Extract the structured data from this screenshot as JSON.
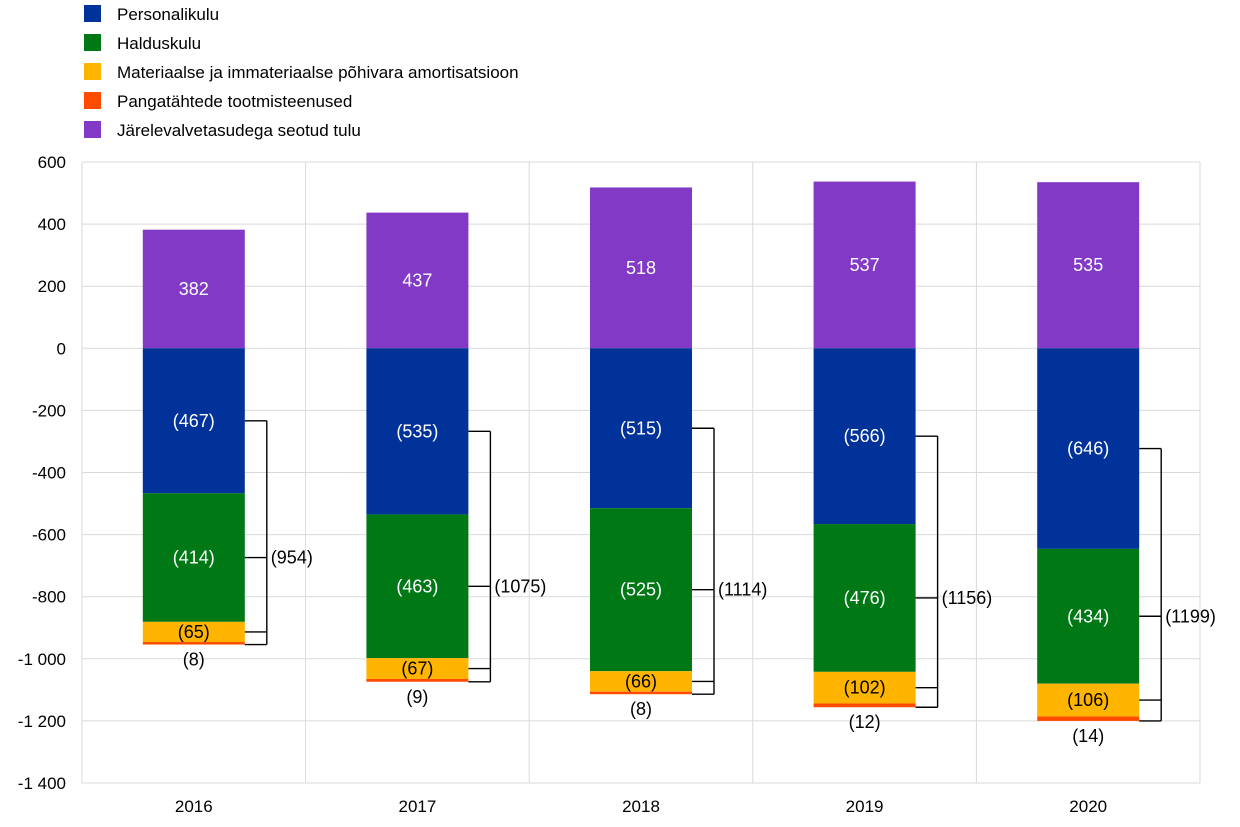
{
  "chart_data": {
    "type": "bar",
    "stacked": true,
    "categories": [
      "2016",
      "2017",
      "2018",
      "2019",
      "2020"
    ],
    "ylim": [
      -1400,
      600
    ],
    "yticks": [
      600,
      400,
      200,
      0,
      -200,
      -400,
      -600,
      -800,
      -1000,
      -1200,
      -1400
    ],
    "ytick_labels": [
      "600",
      "400",
      "200",
      "0",
      "-200",
      "-400",
      "-600",
      "-800",
      "-1 000",
      "-1 200",
      "-1 400"
    ],
    "grid": true,
    "legend_position": "top-left",
    "series": [
      {
        "name": "Personalikulu",
        "color": "#003299",
        "values": [
          -467,
          -535,
          -515,
          -566,
          -646
        ],
        "labels": [
          "(467)",
          "(535)",
          "(515)",
          "(566)",
          "(646)"
        ]
      },
      {
        "name": "Halduskulu",
        "color": "#007816",
        "values": [
          -414,
          -463,
          -525,
          -476,
          -434
        ],
        "labels": [
          "(414)",
          "(463)",
          "(525)",
          "(476)",
          "(434)"
        ]
      },
      {
        "name": "Materiaalse ja immateriaalse põhivara amortisatsioon",
        "color": "#FFB400",
        "values": [
          -65,
          -67,
          -66,
          -102,
          -106
        ],
        "labels": [
          "(65)",
          "(67)",
          "(66)",
          "(102)",
          "(106)"
        ]
      },
      {
        "name": "Pangatähtede tootmisteenused",
        "color": "#FF4B00",
        "values": [
          -8,
          -9,
          -8,
          -12,
          -14
        ],
        "labels": [
          "(8)",
          "(9)",
          "(8)",
          "(12)",
          "(14)"
        ]
      },
      {
        "name": "Järelevalvetasudega seotud tulu",
        "color": "#8139C6",
        "values": [
          382,
          437,
          518,
          537,
          535
        ],
        "labels": [
          "382",
          "437",
          "518",
          "537",
          "535"
        ]
      }
    ],
    "totals": {
      "values": [
        -954,
        -1075,
        -1114,
        -1156,
        -1199
      ],
      "labels": [
        "(954)",
        "(1075)",
        "(1114)",
        "(1156)",
        "(1199)"
      ]
    }
  }
}
